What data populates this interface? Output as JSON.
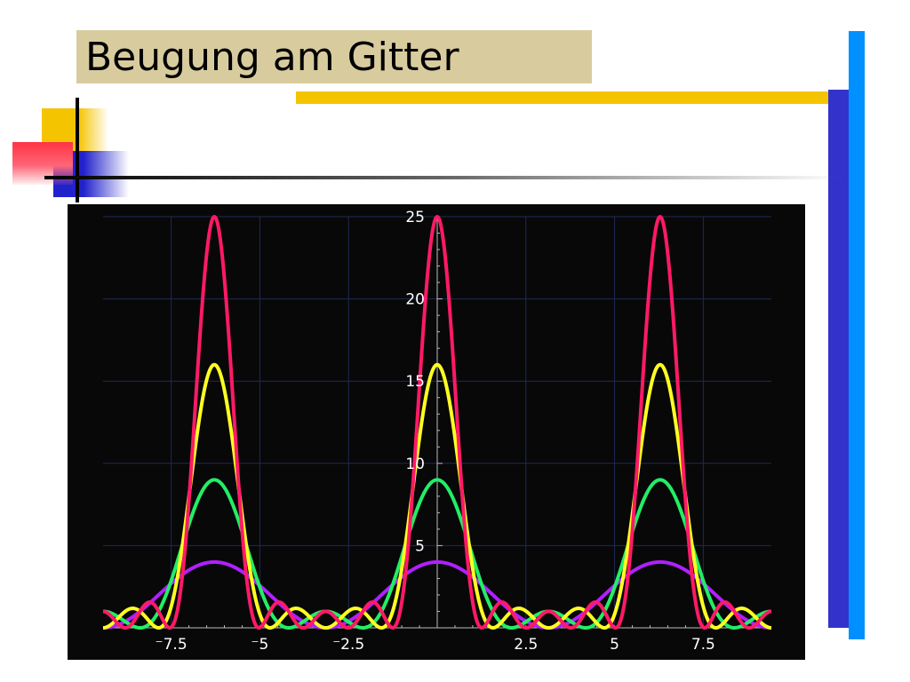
{
  "slide": {
    "title": "Beugung am Gitter",
    "colors": {
      "title_background": "#d8cc9e",
      "accent_yellow": "#f5c400",
      "accent_blue": "#3333cc",
      "accent_cyan": "#0090ff",
      "chart_background": "#080808"
    }
  },
  "chart_data": {
    "type": "line",
    "title": "",
    "xlabel": "",
    "ylabel": "",
    "xlim": [
      -9.42,
      9.42
    ],
    "ylim": [
      0,
      25
    ],
    "x_ticks": [
      {
        "value": -7.5,
        "label": "⁻7.5"
      },
      {
        "value": -5,
        "label": "⁻5"
      },
      {
        "value": -2.5,
        "label": "⁻2.5"
      },
      {
        "value": 2.5,
        "label": "2.5"
      },
      {
        "value": 5,
        "label": "5"
      },
      {
        "value": 7.5,
        "label": "7.5"
      }
    ],
    "y_ticks": [
      {
        "value": 5,
        "label": "5"
      },
      {
        "value": 10,
        "label": "10"
      },
      {
        "value": 15,
        "label": "15"
      },
      {
        "value": 20,
        "label": "20"
      },
      {
        "value": 25,
        "label": "25"
      }
    ],
    "grid": true,
    "principal_maxima_x": [
      -6.283,
      0,
      6.283
    ],
    "series": [
      {
        "slits": 2,
        "color": "#b020ff",
        "peak": 4
      },
      {
        "slits": 3,
        "color": "#22ee66",
        "peak": 9
      },
      {
        "slits": 4,
        "color": "#ffff22",
        "peak": 16
      },
      {
        "slits": 5,
        "color": "#ff1a66",
        "peak": 25
      }
    ]
  }
}
